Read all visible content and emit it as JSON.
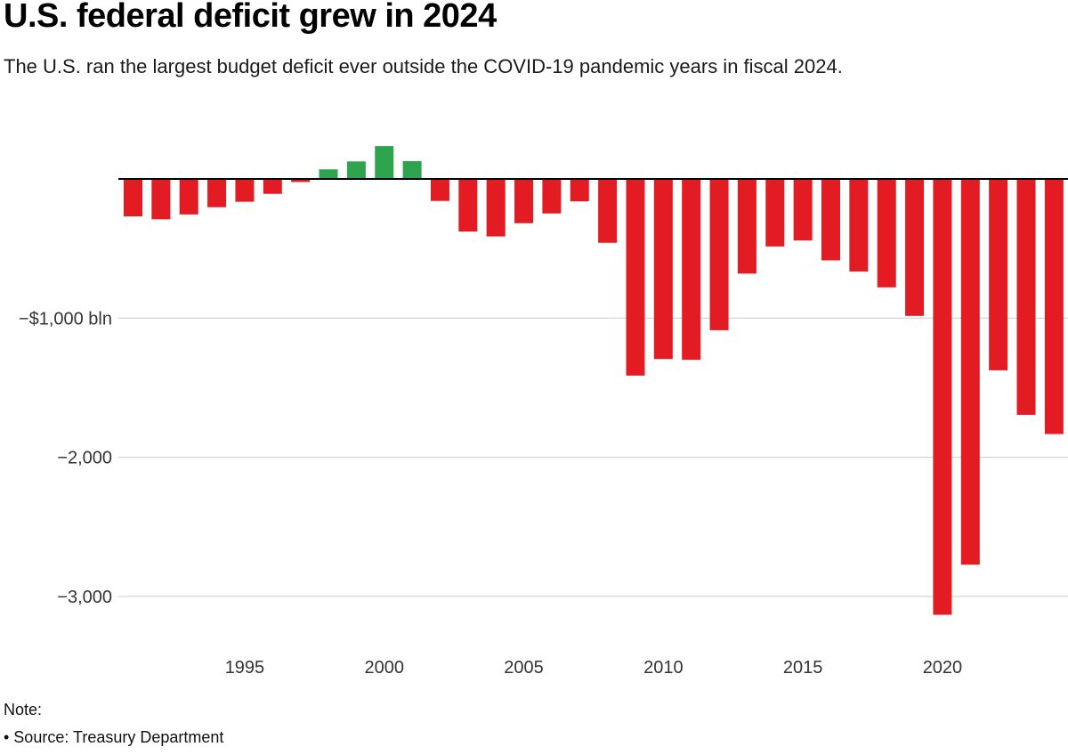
{
  "header": {
    "title": "U.S. federal deficit grew in 2024",
    "subtitle": "The U.S. ran the largest budget deficit ever outside the COVID-19 pandemic years in fiscal 2024."
  },
  "footer": {
    "note": "Note:",
    "source": "• Source: Treasury Department"
  },
  "chart_data": {
    "type": "bar",
    "title": "U.S. federal deficit grew in 2024",
    "subtitle": "The U.S. ran the largest budget deficit ever outside the COVID-19 pandemic years in fiscal 2024.",
    "units": "$ bln",
    "xlabel": "",
    "ylabel": "",
    "grid": "horizontal",
    "legend": "none",
    "ylim": [
      -3300,
      300
    ],
    "x": [
      1991,
      1992,
      1993,
      1994,
      1995,
      1996,
      1997,
      1998,
      1999,
      2000,
      2001,
      2002,
      2003,
      2004,
      2005,
      2006,
      2007,
      2008,
      2009,
      2010,
      2011,
      2012,
      2013,
      2014,
      2015,
      2016,
      2017,
      2018,
      2019,
      2020,
      2021,
      2022,
      2023,
      2024
    ],
    "values": [
      -269,
      -290,
      -255,
      -203,
      -164,
      -107,
      -22,
      69,
      126,
      236,
      128,
      -158,
      -378,
      -413,
      -318,
      -248,
      -161,
      -459,
      -1413,
      -1294,
      -1300,
      -1087,
      -680,
      -485,
      -442,
      -585,
      -665,
      -779,
      -984,
      -3132,
      -2772,
      -1375,
      -1695,
      -1833
    ],
    "y_ticks": [
      {
        "value": -1000,
        "label": "−$1,000 bln"
      },
      {
        "value": -2000,
        "label": "−2,000"
      },
      {
        "value": -3000,
        "label": "−3,000"
      }
    ],
    "x_ticks": [
      {
        "value": 1995,
        "label": "1995"
      },
      {
        "value": 2000,
        "label": "2000"
      },
      {
        "value": 2005,
        "label": "2005"
      },
      {
        "value": 2010,
        "label": "2010"
      },
      {
        "value": 2015,
        "label": "2015"
      },
      {
        "value": 2020,
        "label": "2020"
      }
    ],
    "colors": {
      "deficit": "#e31b23",
      "surplus": "#2fa44f",
      "gridline": "#cccccc",
      "zero_line": "#000000",
      "tick_text": "#333333"
    }
  }
}
